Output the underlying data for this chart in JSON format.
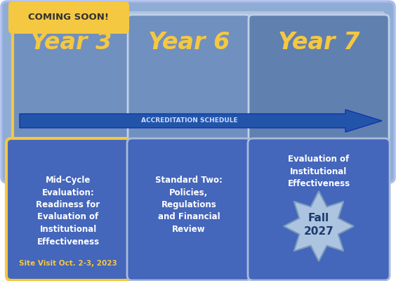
{
  "background_color": "#ffffff",
  "outer_bg_color": "#7799cc",
  "outer_bg_light": "#b0c4de",
  "year_text_color": "#f5c842",
  "coming_soon_bg": "#f5c842",
  "coming_soon_text": "#333333",
  "coming_soon_label": "COMING SOON!",
  "arrow_color": "#2255aa",
  "arrow_label": "ACCREDITATION SCHEDULE",
  "box1_color": "#4466bb",
  "box2_color": "#4466bb",
  "box3_color": "#4466bb",
  "box_text_color": "#ffffff",
  "year3_outline_color": "#f5c842",
  "years": [
    "Year 3",
    "Year 6",
    "Year 7"
  ],
  "box1_text": "Mid-Cycle\nEvaluation:\nReadiness for\nEvaluation of\nInstitutional\nEffectiveness",
  "box2_text": "Standard Two:\nPolicies,\nRegulations\nand Financial\nReview",
  "box3_text": "Evaluation of\nInstitutional\nEffectiveness",
  "site_visit_text": "Site Visit Oct. 2-3, 2023",
  "star_text": "Fall\n2027",
  "star_color": "#adc4e0",
  "star_text_color": "#1a3a6e"
}
